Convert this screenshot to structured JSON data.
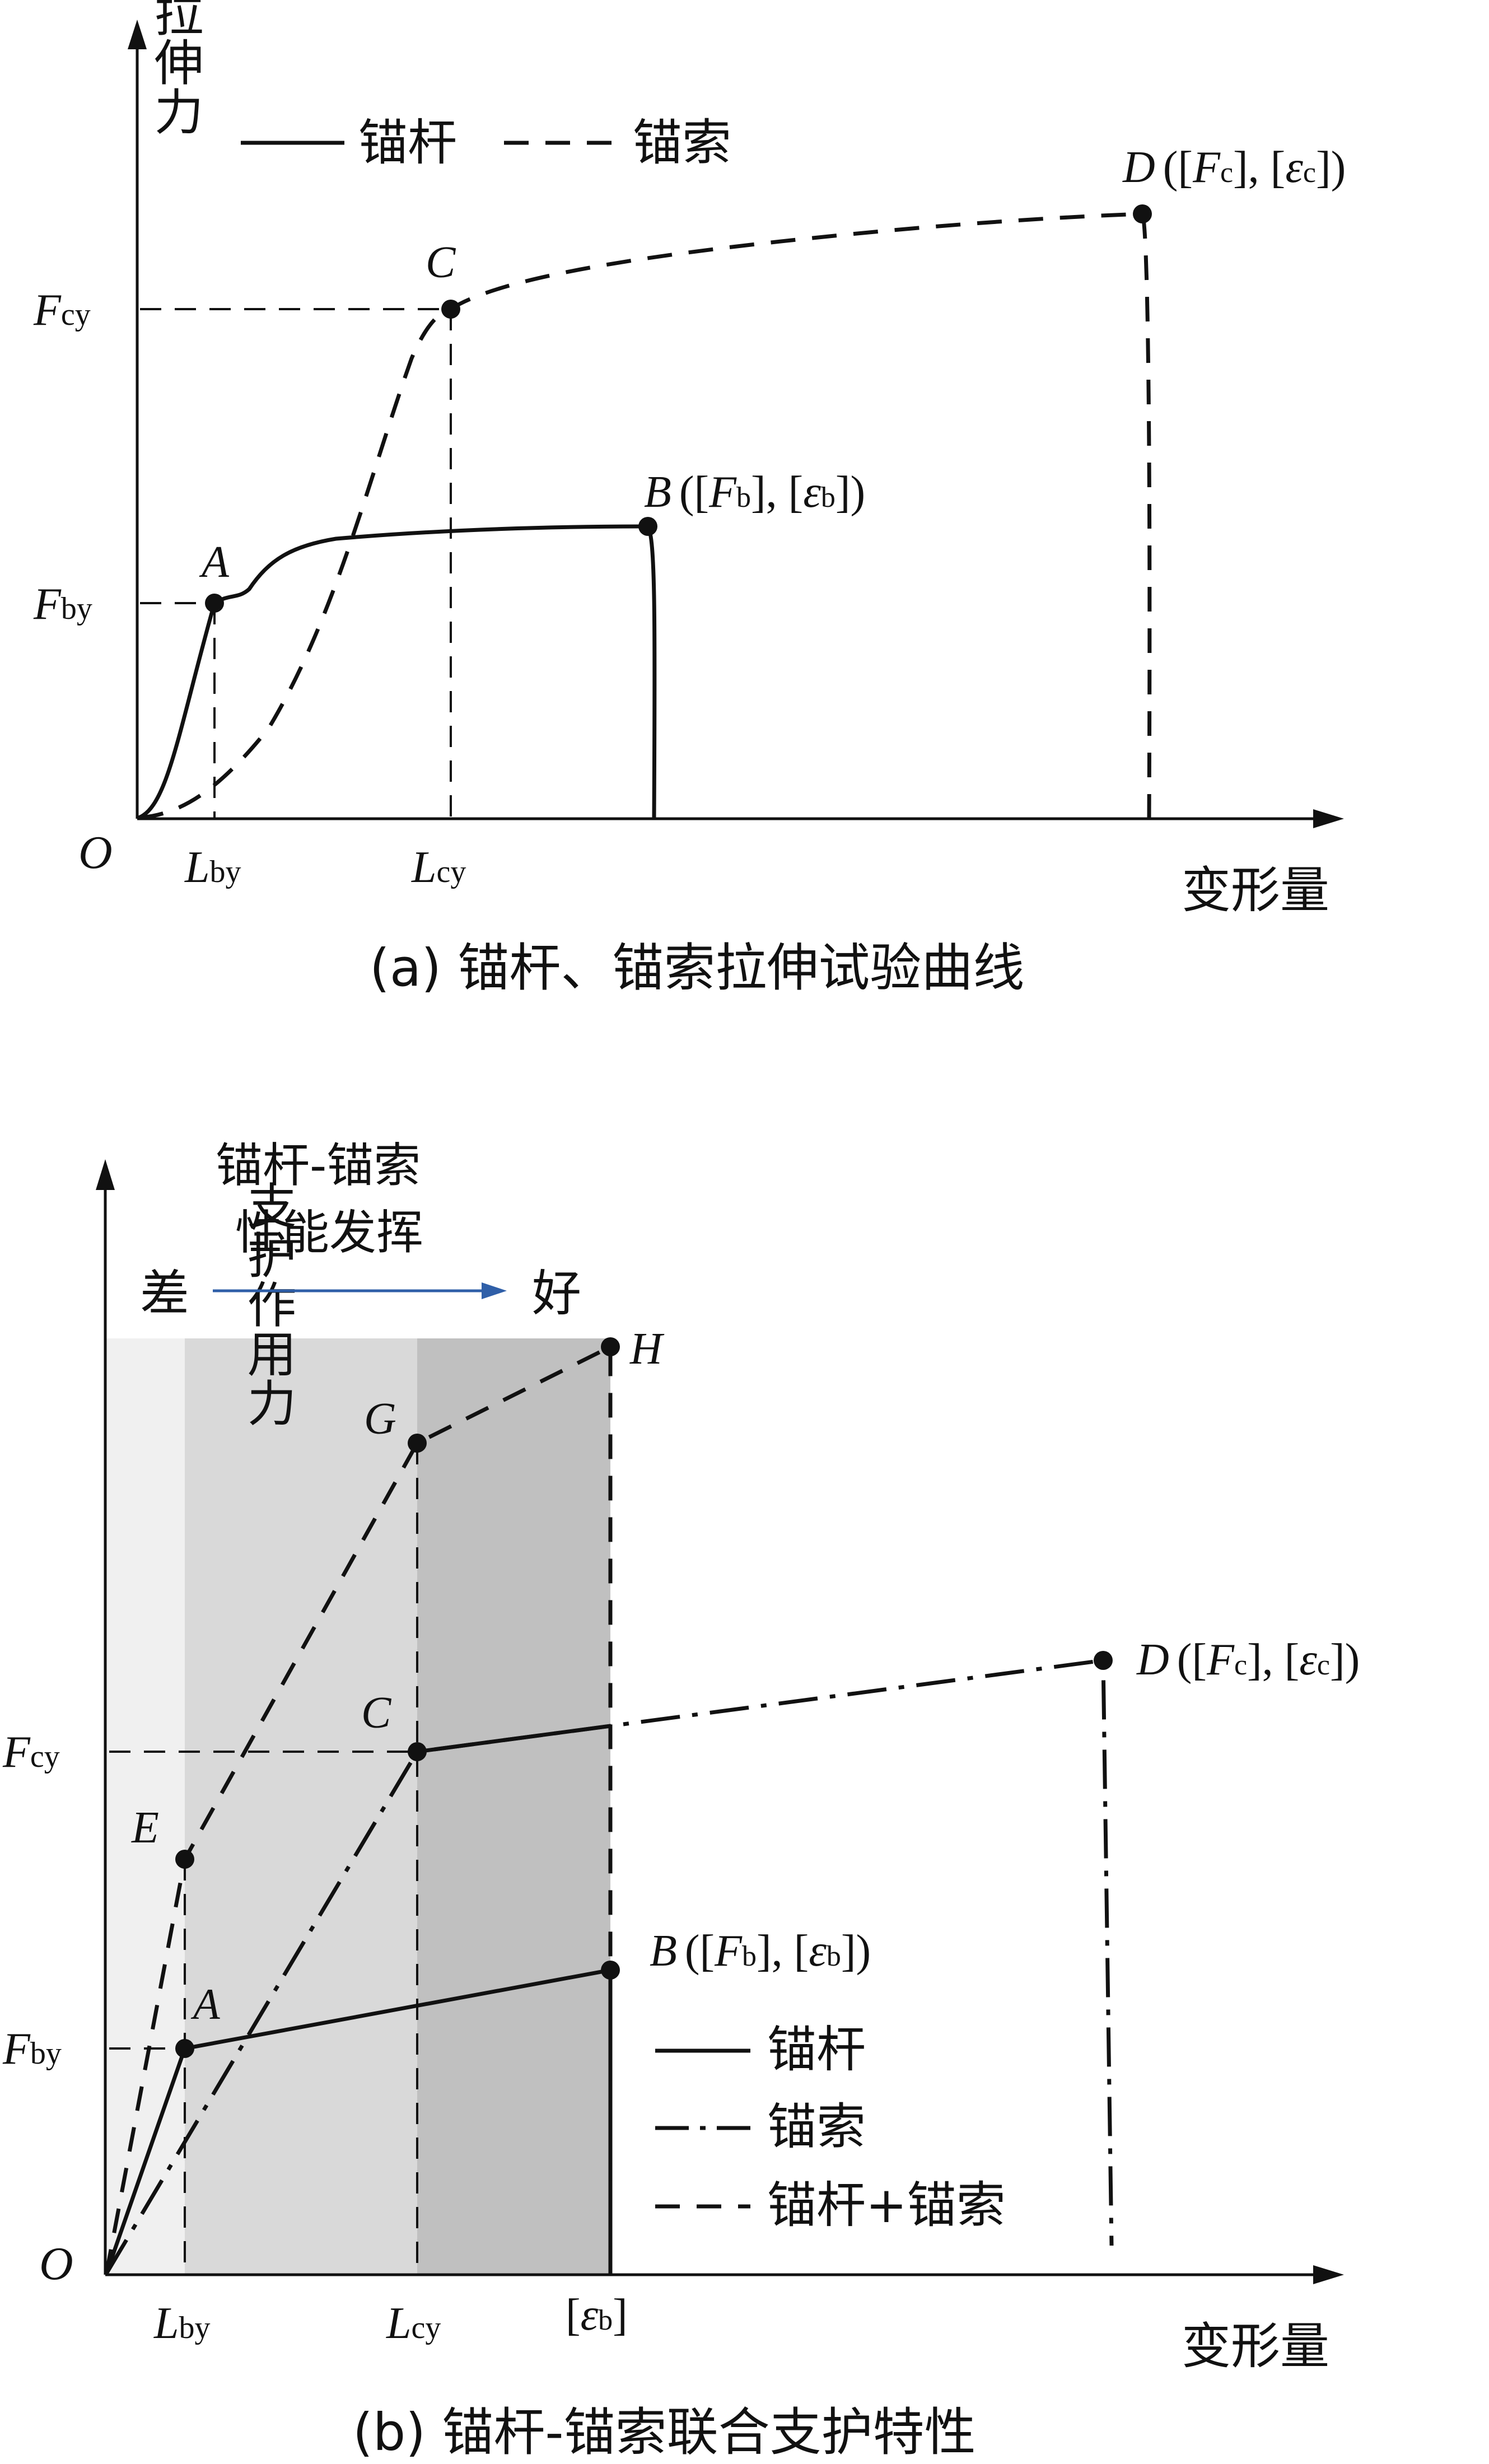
{
  "panel_a": {
    "y_axis_label": "拉伸力",
    "x_axis_label": "变形量",
    "origin": "O",
    "legend": {
      "bolt": "锚杆",
      "cable": "锚索"
    },
    "y_ticks": {
      "fcy_main": "F",
      "fcy_sub": "cy",
      "fby_main": "F",
      "fby_sub": "by"
    },
    "x_ticks": {
      "lby_main": "L",
      "lby_sub": "by",
      "lcy_main": "L",
      "lcy_sub": "cy"
    },
    "points": {
      "A": "A",
      "B": "B",
      "B_open": "([",
      "B_F": "F",
      "B_Fsub": "b",
      "B_mid": "],  [",
      "B_eps": "ε",
      "B_epssub": "b",
      "B_close": "])",
      "C": "C",
      "D": "D",
      "D_open": "([",
      "D_F": "F",
      "D_Fsub": "c",
      "D_mid": "],  [",
      "D_eps": "ε",
      "D_epssub": "c",
      "D_close": "])"
    },
    "caption": "(a)  锚杆、锚索拉伸试验曲线"
  },
  "panel_b": {
    "y_axis_label": "支护作用力",
    "x_axis_label": "变形量",
    "origin": "O",
    "performance_title_line1": "锚杆-锚索",
    "performance_title_line2": "性能发挥",
    "performance_poor": "差",
    "performance_good": "好",
    "y_ticks": {
      "fcy_main": "F",
      "fcy_sub": "cy",
      "fby_main": "F",
      "fby_sub": "by"
    },
    "x_ticks": {
      "lby_main": "L",
      "lby_sub": "by",
      "lcy_main": "L",
      "lcy_sub": "cy",
      "eb_open": "[",
      "eb_eps": "ε",
      "eb_sub": "b",
      "eb_close": "]"
    },
    "points": {
      "A": "A",
      "C": "C",
      "E": "E",
      "G": "G",
      "H": "H",
      "B": "B",
      "B_open": "([",
      "B_F": "F",
      "B_Fsub": "b",
      "B_mid": "],  [",
      "B_eps": "ε",
      "B_epssub": "b",
      "B_close": "])",
      "D": "D",
      "D_open": "([",
      "D_F": "F",
      "D_Fsub": "c",
      "D_mid": "],  [",
      "D_eps": "ε",
      "D_epssub": "c",
      "D_close": "])"
    },
    "legend": {
      "bolt": "锚杆",
      "cable": "锚索",
      "combined": "锚杆+锚索"
    },
    "zone_colors": [
      "#f0f0f0",
      "#d9d9d9",
      "#c0c0c0"
    ],
    "arrow_color": "#2f5fa8",
    "caption": "(b)  锚杆-锚索联合支护特性"
  }
}
